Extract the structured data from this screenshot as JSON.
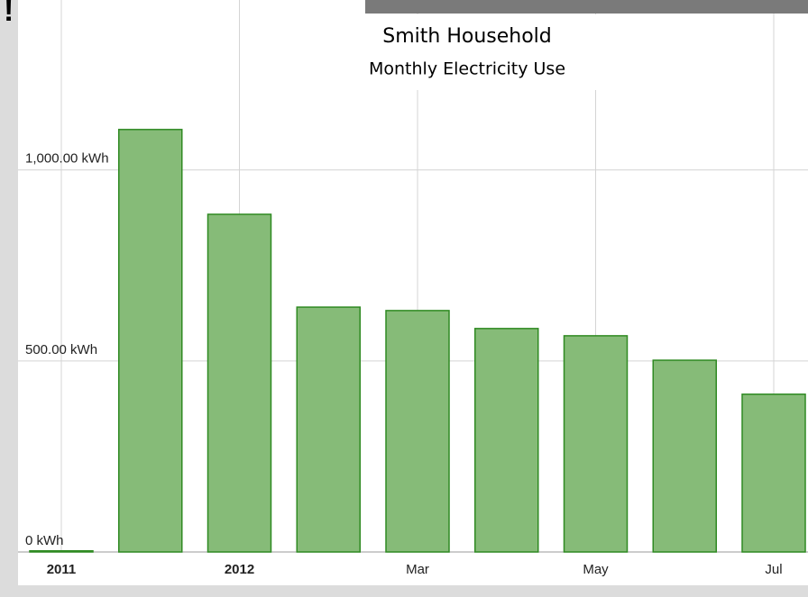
{
  "chart_data": {
    "type": "bar",
    "title": "Smith Household",
    "subtitle": "Monthly Electricity Use",
    "annotations": [
      "!"
    ],
    "categories": [
      "2011",
      null,
      "2012",
      null,
      "Mar",
      null,
      "May",
      null,
      "Jul"
    ],
    "values": [
      3,
      1106,
      884,
      641,
      632,
      585,
      566,
      502,
      413
    ],
    "color": "#86bb78",
    "edge_color": "#2f8a22",
    "ylim": [
      0,
      1445
    ],
    "yticks": [
      {
        "value": 0,
        "label": "0 kWh"
      },
      {
        "value": 500,
        "label": "500.00 kWh"
      },
      {
        "value": 1000,
        "label": "1,000.00 kWh"
      }
    ],
    "grid": true
  }
}
